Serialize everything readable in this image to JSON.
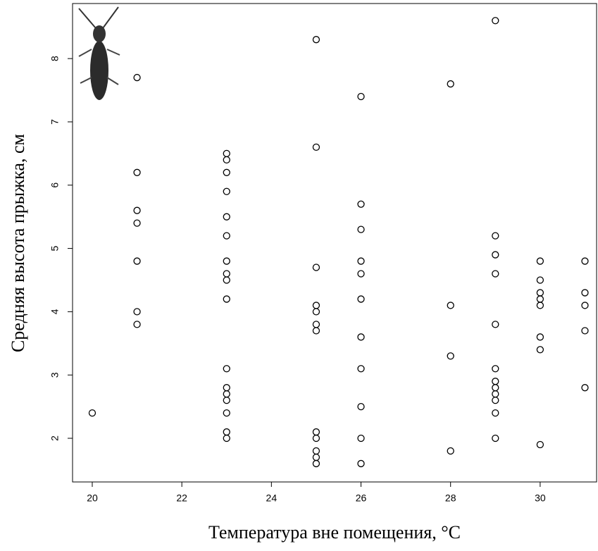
{
  "chart_data": {
    "type": "scatter",
    "xlabel": "Температура вне помещения, °C",
    "ylabel": "Средняя высота прыжка, см",
    "x": [
      20,
      21,
      21,
      21,
      21,
      21,
      21,
      21,
      23,
      23,
      23,
      23,
      23,
      23,
      23,
      23,
      23,
      23,
      23,
      23,
      23,
      23,
      23,
      23,
      23,
      25,
      25,
      25,
      25,
      25,
      25,
      25,
      25,
      25,
      25,
      25,
      25,
      26,
      26,
      26,
      26,
      26,
      26,
      26,
      26,
      26,
      26,
      26,
      28,
      28,
      28,
      28,
      29,
      29,
      29,
      29,
      29,
      29,
      29,
      29,
      29,
      29,
      29,
      29,
      30,
      30,
      30,
      30,
      30,
      30,
      30,
      30,
      31,
      31,
      31,
      31,
      31
    ],
    "y": [
      2.4,
      7.7,
      6.2,
      5.6,
      5.4,
      4.8,
      4.0,
      3.8,
      6.5,
      6.4,
      6.2,
      5.9,
      5.5,
      5.2,
      4.8,
      4.6,
      4.5,
      4.2,
      3.1,
      2.8,
      2.7,
      2.6,
      2.4,
      2.1,
      2.0,
      8.3,
      6.6,
      4.7,
      4.1,
      4.0,
      3.8,
      3.7,
      2.1,
      2.0,
      1.8,
      1.7,
      1.6,
      7.4,
      5.7,
      5.3,
      4.8,
      4.6,
      4.2,
      3.6,
      3.1,
      2.5,
      2.0,
      1.6,
      7.6,
      4.1,
      3.3,
      1.8,
      8.6,
      5.2,
      4.9,
      4.6,
      3.8,
      3.1,
      2.9,
      2.8,
      2.7,
      2.6,
      2.4,
      2.0,
      4.8,
      4.5,
      4.3,
      4.2,
      4.1,
      3.6,
      3.4,
      1.9,
      4.8,
      4.3,
      4.1,
      3.7,
      2.8
    ],
    "color": "#000000",
    "xlim": [
      19.56,
      31.26
    ],
    "ylim": [
      1.31,
      8.87
    ],
    "xticks": [
      20,
      22,
      24,
      26,
      28,
      30
    ],
    "yticks": [
      2,
      3,
      4,
      5,
      6,
      7,
      8
    ]
  }
}
